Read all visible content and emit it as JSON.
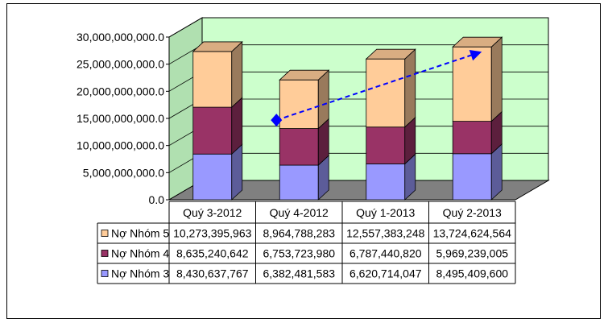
{
  "chart_data": {
    "type": "bar",
    "stacked": true,
    "three_d": true,
    "categories": [
      "Quý 3-2012",
      "Quý 4-2012",
      "Quý 1-2013",
      "Quý 2-2013"
    ],
    "series": [
      {
        "name": "Nợ Nhóm 3",
        "values": [
          8430637767,
          6382481583,
          6620714047,
          8495409600
        ],
        "labels": [
          "8,430,637,767",
          "6,382,481,583",
          "6,620,714,047",
          "8,495,409,600"
        ]
      },
      {
        "name": "Nợ Nhóm 4",
        "values": [
          8635240642,
          6753723980,
          6787440820,
          5969239005
        ],
        "labels": [
          "8,635,240,642",
          "6,753,723,980",
          "6,787,440,820",
          "5,969,239,005"
        ]
      },
      {
        "name": "Nợ Nhóm 5",
        "values": [
          10273395963,
          8964788283,
          12557383248,
          13724624564
        ],
        "labels": [
          "10,273,395,963",
          "8,964,788,283",
          "12,557,383,248",
          "13,724,624,564"
        ]
      }
    ],
    "ylim": [
      0,
      30000000000
    ],
    "yticks": [
      0,
      5000000000,
      10000000000,
      15000000000,
      20000000000,
      25000000000,
      30000000000
    ],
    "ytick_labels": [
      "0.0",
      "5,000,000,000.0",
      "10,000,000,000.0",
      "15,000,000,000.0",
      "20,000,000,000.0",
      "25,000,000,000.0",
      "30,000,000,000.0"
    ],
    "grid": true,
    "legend": "data-table",
    "trend_arrow": {
      "from_category": "Quý 4-2012",
      "to_category": "Quý 2-2013",
      "style": "dashed",
      "color": "#0000FF"
    },
    "colors": {
      "series": [
        "#9999FF",
        "#993366",
        "#FFCC99"
      ],
      "wall": "#CCFFCC",
      "floor": "#808080",
      "trend": "#0000FF"
    }
  }
}
